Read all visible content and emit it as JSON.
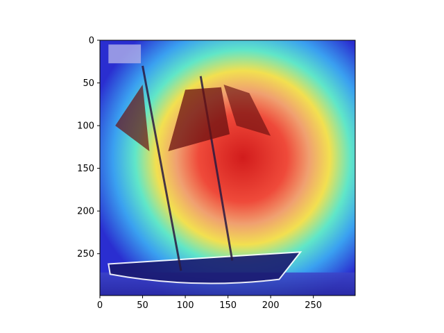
{
  "chart_data": {
    "type": "heatmap",
    "title": "",
    "xlabel": "",
    "ylabel": "",
    "xlim": [
      0,
      299
    ],
    "ylim": [
      299,
      0
    ],
    "x_ticks": [
      0,
      50,
      100,
      150,
      200,
      250
    ],
    "y_ticks": [
      0,
      50,
      100,
      150,
      200,
      250
    ],
    "image_description_visible": "sailing schooner photo with attention heatmap overlay",
    "colormap": "jet",
    "hotspot_center": [
      155,
      130
    ],
    "grid": false,
    "legend": "none",
    "colors": {
      "hot": "#d62020",
      "warm": "#f5e04a",
      "mid": "#3fe0d0",
      "cold": "#2430d8"
    }
  }
}
